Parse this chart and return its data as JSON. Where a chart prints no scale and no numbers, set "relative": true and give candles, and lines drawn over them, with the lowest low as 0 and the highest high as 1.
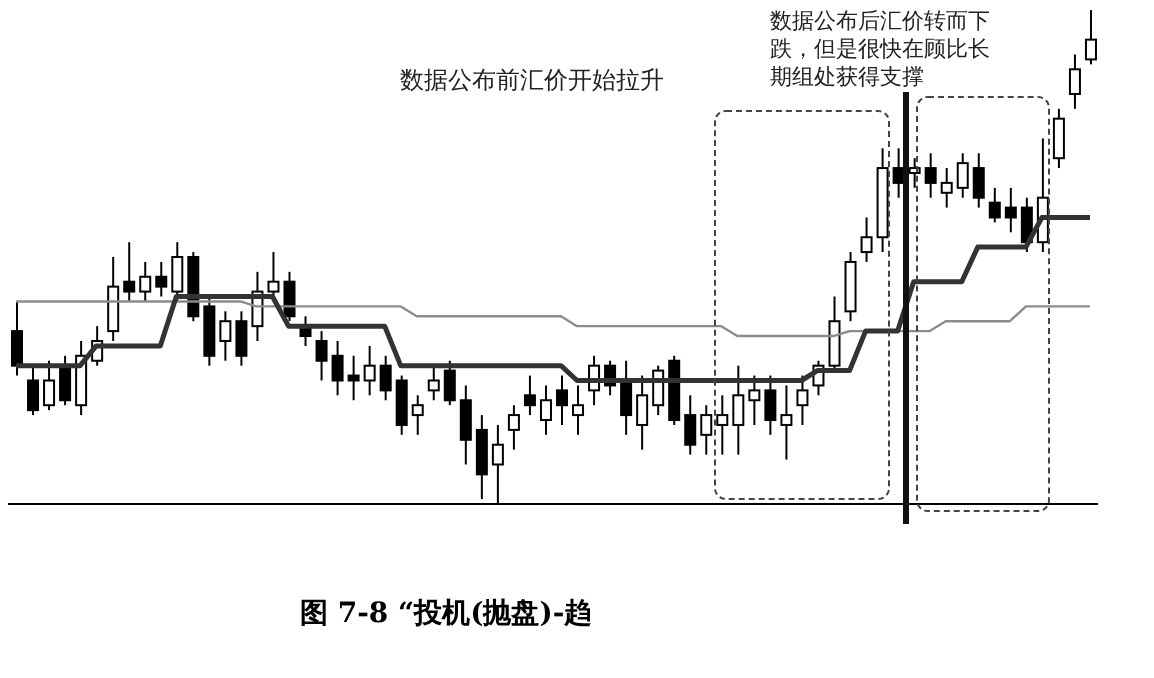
{
  "chart_data": {
    "type": "candlestick",
    "relative": true,
    "title": "图 7-8 “投机(抛盘)-趋",
    "annotations": [
      "数据公布前汇价开始拉升",
      "数据公布后汇价转而下跌，但是很快在顾比长期组处获得支撑"
    ],
    "categories": [
      null,
      null,
      null,
      null,
      null,
      null,
      null,
      null,
      null,
      null,
      null,
      null,
      null,
      null,
      null,
      null,
      null,
      null,
      null,
      null,
      null,
      null,
      null,
      null,
      null,
      null,
      null,
      null,
      null,
      null,
      null,
      null,
      null,
      null,
      null,
      null,
      null,
      null,
      null,
      null,
      null,
      null,
      null,
      null,
      null,
      null,
      null,
      null,
      null,
      null,
      null,
      null,
      null,
      null,
      null,
      null,
      null,
      null,
      null,
      null,
      null,
      null,
      null,
      null,
      null,
      null,
      null,
      null
    ],
    "color": "#000000",
    "ohlc": [
      [
        0.35,
        0.41,
        0.26,
        0.28
      ],
      [
        0.25,
        0.28,
        0.18,
        0.19
      ],
      [
        0.2,
        0.29,
        0.19,
        0.25
      ],
      [
        0.28,
        0.3,
        0.2,
        0.21
      ],
      [
        0.2,
        0.33,
        0.18,
        0.3
      ],
      [
        0.29,
        0.36,
        0.28,
        0.33
      ],
      [
        0.35,
        0.5,
        0.33,
        0.44
      ],
      [
        0.45,
        0.53,
        0.41,
        0.43
      ],
      [
        0.43,
        0.49,
        0.41,
        0.46
      ],
      [
        0.46,
        0.49,
        0.42,
        0.44
      ],
      [
        0.43,
        0.53,
        0.41,
        0.5
      ],
      [
        0.5,
        0.51,
        0.37,
        0.38
      ],
      [
        0.4,
        0.42,
        0.28,
        0.3
      ],
      [
        0.33,
        0.39,
        0.29,
        0.37
      ],
      [
        0.37,
        0.39,
        0.28,
        0.3
      ],
      [
        0.36,
        0.47,
        0.33,
        0.43
      ],
      [
        0.43,
        0.51,
        0.41,
        0.45
      ],
      [
        0.45,
        0.47,
        0.37,
        0.38
      ],
      [
        0.36,
        0.38,
        0.32,
        0.34
      ],
      [
        0.33,
        0.35,
        0.25,
        0.29
      ],
      [
        0.3,
        0.33,
        0.22,
        0.25
      ],
      [
        0.26,
        0.3,
        0.21,
        0.25
      ],
      [
        0.25,
        0.32,
        0.22,
        0.28
      ],
      [
        0.28,
        0.3,
        0.21,
        0.23
      ],
      [
        0.25,
        0.26,
        0.14,
        0.16
      ],
      [
        0.18,
        0.22,
        0.14,
        0.2
      ],
      [
        0.23,
        0.28,
        0.21,
        0.25
      ],
      [
        0.27,
        0.29,
        0.2,
        0.21
      ],
      [
        0.21,
        0.24,
        0.08,
        0.13
      ],
      [
        0.15,
        0.18,
        0.01,
        0.06
      ],
      [
        0.08,
        0.16,
        0,
        0.12
      ],
      [
        0.15,
        0.2,
        0.11,
        0.18
      ],
      [
        0.22,
        0.26,
        0.18,
        0.2
      ],
      [
        0.17,
        0.24,
        0.14,
        0.21
      ],
      [
        0.23,
        0.26,
        0.16,
        0.2
      ],
      [
        0.18,
        0.24,
        0.14,
        0.2
      ],
      [
        0.23,
        0.3,
        0.2,
        0.28
      ],
      [
        0.28,
        0.29,
        0.22,
        0.24
      ],
      [
        0.25,
        0.29,
        0.14,
        0.18
      ],
      [
        0.16,
        0.26,
        0.11,
        0.22
      ],
      [
        0.2,
        0.28,
        0.18,
        0.27
      ],
      [
        0.29,
        0.3,
        0.16,
        0.17
      ],
      [
        0.18,
        0.22,
        0.1,
        0.12
      ],
      [
        0.14,
        0.2,
        0.1,
        0.18
      ],
      [
        0.16,
        0.22,
        0.1,
        0.18
      ],
      [
        0.16,
        0.28,
        0.1,
        0.22
      ],
      [
        0.21,
        0.26,
        0.16,
        0.23
      ],
      [
        0.23,
        0.26,
        0.14,
        0.17
      ],
      [
        0.16,
        0.24,
        0.09,
        0.18
      ],
      [
        0.2,
        0.26,
        0.16,
        0.23
      ],
      [
        0.24,
        0.29,
        0.22,
        0.28
      ],
      [
        0.28,
        0.42,
        0.27,
        0.37
      ],
      [
        0.39,
        0.51,
        0.37,
        0.49
      ],
      [
        0.51,
        0.58,
        0.49,
        0.54
      ],
      [
        0.54,
        0.72,
        0.51,
        0.68
      ],
      [
        0.68,
        0.72,
        0.62,
        0.65
      ],
      [
        0.67,
        0.7,
        0.64,
        0.68
      ],
      [
        0.68,
        0.71,
        0.62,
        0.65
      ],
      [
        0.63,
        0.68,
        0.6,
        0.65
      ],
      [
        0.64,
        0.71,
        0.62,
        0.69
      ],
      [
        0.68,
        0.71,
        0.6,
        0.62
      ],
      [
        0.61,
        0.64,
        0.57,
        0.58
      ],
      [
        0.6,
        0.64,
        0.55,
        0.58
      ],
      [
        0.6,
        0.62,
        0.51,
        0.53
      ],
      [
        0.53,
        0.74,
        0.51,
        0.62
      ],
      [
        0.7,
        0.8,
        0.68,
        0.78
      ],
      [
        0.83,
        0.91,
        0.8,
        0.88
      ],
      [
        0.9,
        1,
        0.89,
        0.94
      ]
    ],
    "series": [
      {
        "type": "line",
        "color": "#8c8c8c",
        "values": [
          0.41,
          0.41,
          0.41,
          0.41,
          0.41,
          0.41,
          0.41,
          0.41,
          0.41,
          0.41,
          0.41,
          0.41,
          0.41,
          0.41,
          0.41,
          0.4,
          0.4,
          0.4,
          0.4,
          0.4,
          0.4,
          0.4,
          0.4,
          0.4,
          0.4,
          0.38,
          0.38,
          0.38,
          0.38,
          0.38,
          0.38,
          0.38,
          0.38,
          0.38,
          0.38,
          0.36,
          0.36,
          0.36,
          0.36,
          0.36,
          0.36,
          0.36,
          0.36,
          0.36,
          0.36,
          0.34,
          0.34,
          0.34,
          0.34,
          0.34,
          0.34,
          0.34,
          0.35,
          0.35,
          0.35,
          0.35,
          0.35,
          0.35,
          0.37,
          0.37,
          0.37,
          0.37,
          0.37,
          0.4,
          0.4,
          0.4,
          0.4,
          0.4
        ]
      },
      {
        "type": "line",
        "color": "#333333",
        "values": [
          0.28,
          0.28,
          0.28,
          0.28,
          0.28,
          0.32,
          0.32,
          0.32,
          0.32,
          0.32,
          0.42,
          0.42,
          0.42,
          0.42,
          0.42,
          0.42,
          0.42,
          0.36,
          0.36,
          0.36,
          0.36,
          0.36,
          0.36,
          0.36,
          0.28,
          0.28,
          0.28,
          0.28,
          0.28,
          0.28,
          0.28,
          0.28,
          0.28,
          0.28,
          0.28,
          0.25,
          0.25,
          0.25,
          0.25,
          0.25,
          0.25,
          0.25,
          0.25,
          0.25,
          0.25,
          0.25,
          0.25,
          0.25,
          0.25,
          0.25,
          0.27,
          0.27,
          0.27,
          0.35,
          0.35,
          0.35,
          0.45,
          0.45,
          0.45,
          0.45,
          0.52,
          0.52,
          0.52,
          0.52,
          0.58,
          0.58,
          0.58,
          0.58
        ]
      }
    ]
  }
}
